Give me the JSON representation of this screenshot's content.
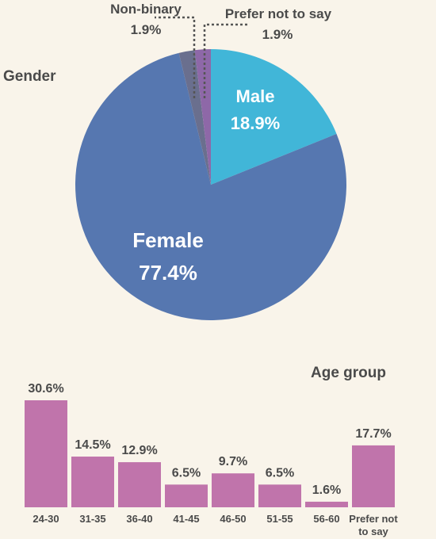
{
  "chart_data": [
    {
      "type": "pie",
      "title": "Gender",
      "slices": [
        {
          "label": "Male",
          "value_label": "18.9%",
          "value": 18.9,
          "color": "#41b6d8"
        },
        {
          "label": "Female",
          "value_label": "77.4%",
          "value": 77.4,
          "color": "#5677b0"
        },
        {
          "label": "Non-binary",
          "value_label": "1.9%",
          "value": 1.9,
          "color": "#6a6f8e"
        },
        {
          "label": "Prefer not to say",
          "value_label": "1.9%",
          "value": 1.9,
          "color": "#8e68a8"
        }
      ]
    },
    {
      "type": "bar",
      "title": "Age group",
      "categories": [
        "24-30",
        "31-35",
        "36-40",
        "41-45",
        "46-50",
        "51-55",
        "56-60",
        "Prefer not to say"
      ],
      "values": [
        30.6,
        14.5,
        12.9,
        6.5,
        9.7,
        6.5,
        1.6,
        17.7
      ],
      "value_labels": [
        "30.6%",
        "14.5%",
        "12.9%",
        "6.5%",
        "9.7%",
        "6.5%",
        "1.6%",
        "17.7%"
      ],
      "color": "#c074ab",
      "ylim": [
        0,
        30.6
      ]
    }
  ]
}
